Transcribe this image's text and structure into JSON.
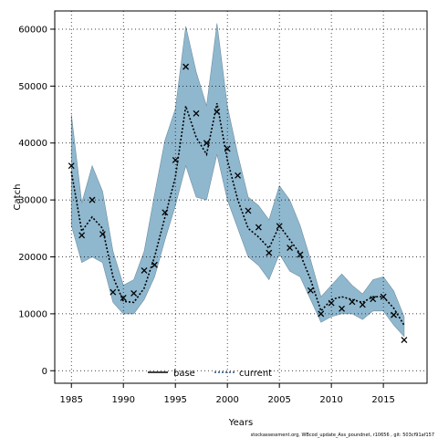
{
  "chart_data": {
    "type": "line",
    "title": "",
    "xlabel": "Years",
    "ylabel": "Catch",
    "xlim": [
      1983.4,
      2019.2
    ],
    "ylim": [
      -2200,
      63200
    ],
    "x_ticks": [
      1985,
      1990,
      1995,
      2000,
      2005,
      2010,
      2015
    ],
    "y_ticks": [
      0,
      10000,
      20000,
      30000,
      40000,
      50000,
      60000
    ],
    "x_tick_labels": [
      "1985",
      "1990",
      "1995",
      "2000",
      "2005",
      "2010",
      "2015"
    ],
    "y_tick_labels": [
      "0",
      "10000",
      "20000",
      "30000",
      "40000",
      "50000",
      "60000"
    ],
    "grid": true,
    "legend": {
      "placement": "bottom-center",
      "entries": [
        {
          "label": "base",
          "style": "solid",
          "color": "#000000"
        },
        {
          "label": "current",
          "style": "dotted",
          "color": "#1f4e79"
        }
      ]
    },
    "band_color": "#8fb8cf",
    "years": [
      1985,
      1986,
      1987,
      1988,
      1989,
      1990,
      1991,
      1992,
      1993,
      1994,
      1995,
      1996,
      1997,
      1998,
      1999,
      2000,
      2001,
      2002,
      2003,
      2004,
      2005,
      2006,
      2007,
      2008,
      2009,
      2010,
      2011,
      2012,
      2013,
      2014,
      2015,
      2016,
      2017
    ],
    "observed_catch": [
      36000,
      23800,
      30000,
      24000,
      13800,
      12800,
      13600,
      17600,
      18600,
      27800,
      37000,
      53400,
      45200,
      40000,
      45500,
      39000,
      34300,
      28100,
      25200,
      20700,
      25400,
      21600,
      20400,
      14100,
      10000,
      11900,
      10900,
      12100,
      11600,
      12600,
      13000,
      9800,
      5400
    ],
    "series": [
      {
        "name": "current",
        "values": [
          35000,
          24500,
          27000,
          25000,
          16500,
          12200,
          12000,
          14500,
          20000,
          27000,
          34000,
          46500,
          41000,
          38000,
          47000,
          37000,
          30000,
          25000,
          23500,
          21500,
          25500,
          23000,
          20500,
          16000,
          10500,
          12500,
          13000,
          12500,
          12000,
          13000,
          13000,
          11000,
          8000
        ],
        "lower": [
          25500,
          19000,
          20000,
          19000,
          12000,
          10000,
          10000,
          12500,
          16500,
          23000,
          29000,
          36000,
          30500,
          30000,
          38000,
          30000,
          25000,
          20000,
          18500,
          16000,
          20500,
          17500,
          16500,
          12500,
          8500,
          9500,
          10000,
          10000,
          9000,
          10500,
          10500,
          8000,
          6000
        ],
        "upper": [
          45000,
          29500,
          36000,
          31500,
          21000,
          15000,
          16000,
          21000,
          31000,
          40500,
          46000,
          60500,
          52500,
          46500,
          61000,
          46500,
          38000,
          30500,
          29000,
          26500,
          32500,
          30000,
          25500,
          19500,
          13000,
          15000,
          17000,
          15000,
          13500,
          16000,
          16500,
          14000,
          9500
        ]
      }
    ]
  },
  "footnote": "stockassessment.org, WBcod_update_Ass_poundnet, r10656 , git: 503cf91af157"
}
